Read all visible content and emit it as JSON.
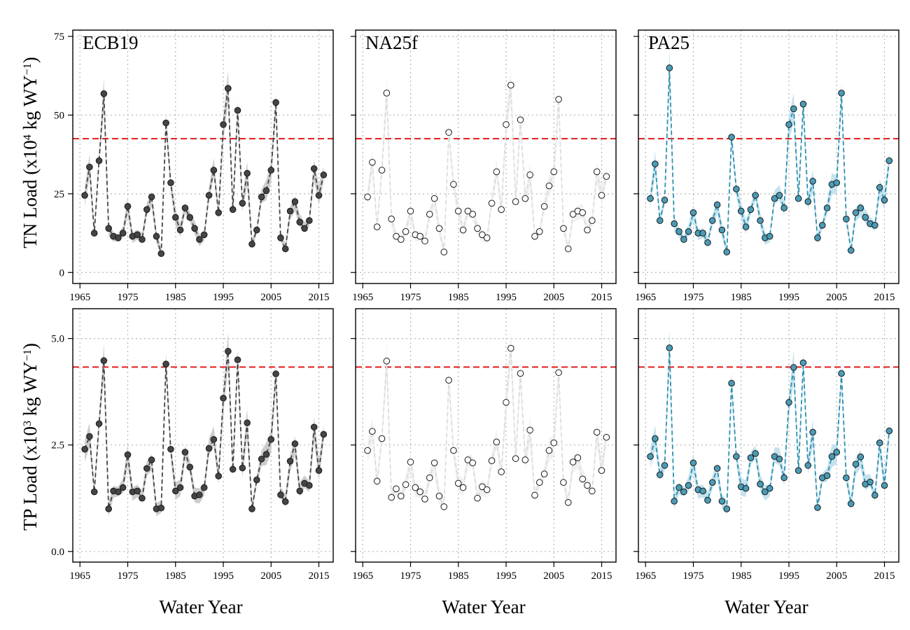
{
  "figure": {
    "xlabel": "Water Year",
    "row_ylabels": [
      [
        "TN Load (x10",
        "4",
        " kg WY",
        "−1",
        ")"
      ],
      [
        "TP Load (x10",
        "3",
        " kg WY",
        "−1",
        ")"
      ]
    ],
    "panel_titles": [
      "ECB19",
      "NA25f",
      "PA25"
    ],
    "colors": {
      "ECB19": {
        "fill": "#454545",
        "line": "#454545",
        "band": "#c8c8c8"
      },
      "NA25f": {
        "fill": "#ffffff",
        "line": "#dcdcdc",
        "band": "#f0f0f0"
      },
      "PA25": {
        "fill": "#4a9bb6",
        "line": "#2e8fae",
        "band": "#bfe0ec"
      },
      "threshold": "#e31a1c",
      "grid": "#b5b5b5"
    }
  },
  "chart_data": [
    {
      "type": "scatter",
      "row": 0,
      "col": 0,
      "title": "ECB19",
      "ylabel": "TN Load (x10⁴ kg WY⁻¹)",
      "xlabel": "Water Year",
      "xlim": [
        1963.5,
        2018
      ],
      "ylim": [
        -3.5,
        77
      ],
      "xticks": [
        1965,
        1975,
        1985,
        1995,
        2005,
        2015
      ],
      "yticks": [
        0,
        25,
        50,
        75
      ],
      "threshold": 42.5,
      "x": [
        1966,
        1967,
        1968,
        1969,
        1970,
        1971,
        1972,
        1973,
        1974,
        1975,
        1976,
        1977,
        1978,
        1979,
        1980,
        1981,
        1982,
        1983,
        1984,
        1985,
        1986,
        1987,
        1988,
        1989,
        1990,
        1991,
        1992,
        1993,
        1994,
        1995,
        1996,
        1997,
        1998,
        1999,
        2000,
        2001,
        2002,
        2003,
        2004,
        2005,
        2006,
        2007,
        2008,
        2009,
        2010,
        2011,
        2012,
        2013,
        2014,
        2015,
        2016
      ],
      "values": [
        24.5,
        33.5,
        12.5,
        35.5,
        56.8,
        14,
        11.5,
        11,
        12.5,
        21,
        11.5,
        12,
        10.5,
        20,
        24,
        11.5,
        6,
        47.5,
        28.5,
        17.5,
        13.5,
        20.5,
        17.5,
        14,
        10.5,
        12,
        24.5,
        32.5,
        19,
        47,
        58.5,
        20,
        51.5,
        22,
        31.5,
        9,
        13.5,
        24,
        26,
        32.5,
        54,
        11,
        7.5,
        19.5,
        22.5,
        16,
        14,
        16.5,
        33,
        24.5,
        31
      ]
    },
    {
      "type": "scatter",
      "row": 0,
      "col": 1,
      "title": "NA25f",
      "xlabel": "Water Year",
      "xlim": [
        1963.5,
        2018
      ],
      "ylim": [
        -3.5,
        77
      ],
      "xticks": [
        1965,
        1975,
        1985,
        1995,
        2005,
        2015
      ],
      "yticks": [
        0,
        25,
        50,
        75
      ],
      "threshold": 42.5,
      "x": [
        1966,
        1967,
        1968,
        1969,
        1970,
        1971,
        1972,
        1973,
        1974,
        1975,
        1976,
        1977,
        1978,
        1979,
        1980,
        1981,
        1982,
        1983,
        1984,
        1985,
        1986,
        1987,
        1988,
        1989,
        1990,
        1991,
        1992,
        1993,
        1994,
        1995,
        1996,
        1997,
        1998,
        1999,
        2000,
        2001,
        2002,
        2003,
        2004,
        2005,
        2006,
        2007,
        2008,
        2009,
        2010,
        2011,
        2012,
        2013,
        2014,
        2015,
        2016
      ],
      "values": [
        24,
        35,
        14.5,
        32.5,
        57,
        17,
        11.5,
        10.5,
        13,
        19.5,
        12,
        11.5,
        10,
        18.5,
        23.5,
        14,
        6.5,
        44.5,
        28,
        19.5,
        13.5,
        19.5,
        18.5,
        14,
        12,
        11,
        22,
        32,
        20,
        47,
        59.5,
        22.5,
        48.5,
        23.5,
        31,
        11.5,
        13,
        21,
        27.5,
        32,
        55,
        14,
        7.5,
        18.5,
        19.5,
        19,
        13.5,
        16.5,
        32,
        24.5,
        30.5
      ]
    },
    {
      "type": "scatter",
      "row": 0,
      "col": 2,
      "title": "PA25",
      "xlabel": "Water Year",
      "xlim": [
        1963.5,
        2018
      ],
      "ylim": [
        -3.5,
        77
      ],
      "xticks": [
        1965,
        1975,
        1985,
        1995,
        2005,
        2015
      ],
      "yticks": [
        0,
        25,
        50,
        75
      ],
      "threshold": 42.5,
      "x": [
        1966,
        1967,
        1968,
        1969,
        1970,
        1971,
        1972,
        1973,
        1974,
        1975,
        1976,
        1977,
        1978,
        1979,
        1980,
        1981,
        1982,
        1983,
        1984,
        1985,
        1986,
        1987,
        1988,
        1989,
        1990,
        1991,
        1992,
        1993,
        1994,
        1995,
        1996,
        1997,
        1998,
        1999,
        2000,
        2001,
        2002,
        2003,
        2004,
        2005,
        2006,
        2007,
        2008,
        2009,
        2010,
        2011,
        2012,
        2013,
        2014,
        2015,
        2016
      ],
      "values": [
        23.5,
        34.5,
        16.5,
        23,
        65,
        15.5,
        13,
        10.5,
        13,
        19,
        12.5,
        12.5,
        9.5,
        16.5,
        21.5,
        13.5,
        6.5,
        43,
        26.5,
        19.5,
        14.5,
        20,
        24.5,
        16.5,
        11,
        11.5,
        23.5,
        24.5,
        20.5,
        47,
        52,
        23.5,
        53.5,
        22.5,
        29,
        11,
        15,
        20.5,
        28,
        28.5,
        57,
        17,
        7,
        19,
        20.5,
        17.5,
        15.5,
        15,
        27,
        23,
        35.5
      ]
    },
    {
      "type": "scatter",
      "row": 1,
      "col": 0,
      "title": "",
      "ylabel": "TP Load (x10³ kg WY⁻¹)",
      "xlabel": "Water Year",
      "xlim": [
        1963.5,
        2018
      ],
      "ylim": [
        -0.25,
        5.7
      ],
      "xticks": [
        1965,
        1975,
        1985,
        1995,
        2005,
        2015
      ],
      "yticks": [
        0,
        2.5,
        5
      ],
      "ytick_labels": [
        "0.0",
        "2.5",
        "5.0"
      ],
      "threshold": 4.33,
      "x": [
        1966,
        1967,
        1968,
        1969,
        1970,
        1971,
        1972,
        1973,
        1974,
        1975,
        1976,
        1977,
        1978,
        1979,
        1980,
        1981,
        1982,
        1983,
        1984,
        1985,
        1986,
        1987,
        1988,
        1989,
        1990,
        1991,
        1992,
        1993,
        1994,
        1995,
        1996,
        1997,
        1998,
        1999,
        2000,
        2001,
        2002,
        2003,
        2004,
        2005,
        2006,
        2007,
        2008,
        2009,
        2010,
        2011,
        2012,
        2013,
        2014,
        2015,
        2016
      ],
      "values": [
        2.4,
        2.7,
        1.4,
        3,
        4.48,
        1,
        1.42,
        1.4,
        1.5,
        2.27,
        1.4,
        1.42,
        1.25,
        1.95,
        2.15,
        1,
        1.02,
        4.4,
        2.4,
        1.42,
        1.5,
        2.33,
        1.98,
        1.3,
        1.33,
        1.5,
        2.42,
        2.63,
        1.77,
        3.6,
        4.7,
        1.93,
        4.5,
        1.96,
        3.02,
        1,
        1.68,
        2.17,
        2.28,
        2.63,
        4.17,
        1.33,
        1.17,
        2.12,
        2.53,
        1.42,
        1.6,
        1.55,
        2.92,
        1.9,
        2.75
      ]
    },
    {
      "type": "scatter",
      "row": 1,
      "col": 1,
      "title": "",
      "xlabel": "Water Year",
      "xlim": [
        1963.5,
        2018
      ],
      "ylim": [
        -0.25,
        5.7
      ],
      "xticks": [
        1965,
        1975,
        1985,
        1995,
        2005,
        2015
      ],
      "yticks": [
        0,
        2.5,
        5
      ],
      "threshold": 4.33,
      "x": [
        1966,
        1967,
        1968,
        1969,
        1970,
        1971,
        1972,
        1973,
        1974,
        1975,
        1976,
        1977,
        1978,
        1979,
        1980,
        1981,
        1982,
        1983,
        1984,
        1985,
        1986,
        1987,
        1988,
        1989,
        1990,
        1991,
        1992,
        1993,
        1994,
        1995,
        1996,
        1997,
        1998,
        1999,
        2000,
        2001,
        2002,
        2003,
        2004,
        2005,
        2006,
        2007,
        2008,
        2009,
        2010,
        2011,
        2012,
        2013,
        2014,
        2015,
        2016
      ],
      "values": [
        2.37,
        2.82,
        1.65,
        2.65,
        4.47,
        1.27,
        1.47,
        1.3,
        1.57,
        2.1,
        1.5,
        1.4,
        1.23,
        1.73,
        2.08,
        1.3,
        1.05,
        4.02,
        2.37,
        1.6,
        1.5,
        2.15,
        2.08,
        1.25,
        1.52,
        1.45,
        2.13,
        2.57,
        1.87,
        3.5,
        4.77,
        2.18,
        4.18,
        2.15,
        2.85,
        1.32,
        1.62,
        1.82,
        2.37,
        2.55,
        4.2,
        1.62,
        1.15,
        2.1,
        2.2,
        1.7,
        1.55,
        1.42,
        2.8,
        1.9,
        2.68
      ]
    },
    {
      "type": "scatter",
      "row": 1,
      "col": 2,
      "title": "",
      "xlabel": "Water Year",
      "xlim": [
        1963.5,
        2018
      ],
      "ylim": [
        -0.25,
        5.7
      ],
      "xticks": [
        1965,
        1975,
        1985,
        1995,
        2005,
        2015
      ],
      "yticks": [
        0,
        2.5,
        5
      ],
      "threshold": 4.33,
      "x": [
        1966,
        1967,
        1968,
        1969,
        1970,
        1971,
        1972,
        1973,
        1974,
        1975,
        1976,
        1977,
        1978,
        1979,
        1980,
        1981,
        1982,
        1983,
        1984,
        1985,
        1986,
        1987,
        1988,
        1989,
        1990,
        1991,
        1992,
        1993,
        1994,
        1995,
        1996,
        1997,
        1998,
        1999,
        2000,
        2001,
        2002,
        2003,
        2004,
        2005,
        2006,
        2007,
        2008,
        2009,
        2010,
        2011,
        2012,
        2013,
        2014,
        2015,
        2016
      ],
      "values": [
        2.23,
        2.65,
        1.8,
        2.02,
        4.78,
        1.18,
        1.5,
        1.4,
        1.55,
        2.08,
        1.45,
        1.42,
        1.2,
        1.62,
        1.95,
        1.18,
        1,
        3.95,
        2.23,
        1.52,
        1.48,
        2.2,
        2.3,
        1.58,
        1.4,
        1.48,
        2.23,
        2.17,
        1.73,
        3.5,
        4.32,
        1.9,
        4.43,
        2.02,
        2.8,
        1.03,
        1.73,
        1.78,
        2.23,
        2.33,
        4.18,
        1.73,
        1.12,
        2.05,
        2.22,
        1.58,
        1.63,
        1.32,
        2.55,
        1.55,
        2.83
      ]
    }
  ]
}
